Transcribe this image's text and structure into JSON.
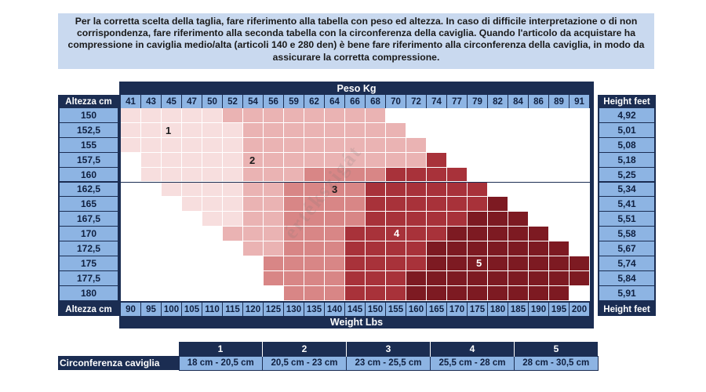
{
  "note": "Per la corretta scelta della taglia, fare riferimento alla tabella con peso ed altezza. In caso di difficile interpretazione o di non corrispondenza, fare riferimento alla seconda tabella con la circonferenza della caviglia. Quando l'articolo da acquistare ha compressione in caviglia medio/alta (articoli 140 e 280 den) è bene fare riferimento alla circonferenza della caviglia, in modo da assicurare la corretta compressione.",
  "chart": {
    "top_title": "Peso Kg",
    "bottom_title": "Weight Lbs",
    "left_header": "Altezza cm",
    "left_footer": "Altezza cm",
    "right_header": "Height feet",
    "right_footer": "Height feet",
    "kg": [
      "41",
      "43",
      "45",
      "47",
      "50",
      "52",
      "54",
      "56",
      "59",
      "62",
      "64",
      "66",
      "68",
      "70",
      "72",
      "74",
      "77",
      "79",
      "82",
      "84",
      "86",
      "89",
      "91"
    ],
    "lbs": [
      "90",
      "95",
      "100",
      "105",
      "110",
      "115",
      "120",
      "125",
      "130",
      "135",
      "140",
      "145",
      "150",
      "155",
      "160",
      "165",
      "170",
      "175",
      "180",
      "185",
      "190",
      "195",
      "200"
    ],
    "heights_cm": [
      "150",
      "152,5",
      "155",
      "157,5",
      "160",
      "162,5",
      "165",
      "167,5",
      "170",
      "172,5",
      "175",
      "177,5",
      "180"
    ],
    "heights_ft": [
      "4,92",
      "5,01",
      "5,08",
      "5,18",
      "5,25",
      "5,34",
      "5,41",
      "5,51",
      "5,58",
      "5,67",
      "5,74",
      "5,84",
      "5,91"
    ],
    "zone_labels": [
      "1",
      "2",
      "3",
      "4",
      "5"
    ],
    "zone_colors": {
      "0": "#ffffff",
      "1": "#f7dede",
      "2": "#eab3b3",
      "3": "#d88686",
      "4": "#a8323a",
      "5": "#7d1a22"
    },
    "watermark": "értékszigát",
    "grid": [
      [
        1,
        1,
        1,
        1,
        1,
        2,
        2,
        2,
        2,
        2,
        2,
        2,
        2,
        0,
        0,
        0,
        0,
        0,
        0,
        0,
        0,
        0,
        0
      ],
      [
        1,
        1,
        1,
        1,
        1,
        1,
        2,
        2,
        2,
        2,
        2,
        2,
        2,
        2,
        0,
        0,
        0,
        0,
        0,
        0,
        0,
        0,
        0
      ],
      [
        1,
        1,
        1,
        1,
        1,
        1,
        2,
        2,
        2,
        2,
        2,
        2,
        2,
        2,
        2,
        0,
        0,
        0,
        0,
        0,
        0,
        0,
        0
      ],
      [
        0,
        1,
        1,
        1,
        1,
        1,
        2,
        2,
        2,
        2,
        2,
        2,
        2,
        2,
        2,
        4,
        0,
        0,
        0,
        0,
        0,
        0,
        0
      ],
      [
        0,
        1,
        1,
        1,
        1,
        1,
        2,
        2,
        2,
        3,
        3,
        3,
        3,
        4,
        4,
        4,
        4,
        0,
        0,
        0,
        0,
        0,
        0
      ],
      [
        0,
        0,
        1,
        1,
        1,
        1,
        2,
        2,
        3,
        3,
        3,
        3,
        4,
        4,
        4,
        4,
        4,
        4,
        0,
        0,
        0,
        0,
        0
      ],
      [
        0,
        0,
        0,
        1,
        1,
        1,
        2,
        2,
        3,
        3,
        3,
        3,
        4,
        4,
        4,
        4,
        4,
        4,
        5,
        0,
        0,
        0,
        0
      ],
      [
        0,
        0,
        0,
        0,
        1,
        1,
        2,
        2,
        3,
        3,
        3,
        3,
        4,
        4,
        4,
        4,
        4,
        5,
        5,
        5,
        0,
        0,
        0
      ],
      [
        0,
        0,
        0,
        0,
        0,
        2,
        2,
        2,
        3,
        3,
        3,
        4,
        4,
        4,
        4,
        4,
        5,
        5,
        5,
        5,
        5,
        0,
        0
      ],
      [
        0,
        0,
        0,
        0,
        0,
        0,
        2,
        2,
        3,
        3,
        3,
        4,
        4,
        4,
        4,
        5,
        5,
        5,
        5,
        5,
        5,
        5,
        0
      ],
      [
        0,
        0,
        0,
        0,
        0,
        0,
        0,
        3,
        3,
        3,
        3,
        4,
        4,
        4,
        4,
        5,
        5,
        5,
        5,
        5,
        5,
        5,
        5
      ],
      [
        0,
        0,
        0,
        0,
        0,
        0,
        0,
        3,
        3,
        3,
        3,
        4,
        4,
        4,
        5,
        5,
        5,
        5,
        5,
        5,
        5,
        5,
        5
      ],
      [
        0,
        0,
        0,
        0,
        0,
        0,
        0,
        0,
        3,
        3,
        3,
        4,
        4,
        4,
        5,
        5,
        5,
        5,
        5,
        5,
        5,
        5,
        0
      ]
    ]
  },
  "legend": {
    "row_label": "Circonferenza caviglia",
    "sizes": [
      "1",
      "2",
      "3",
      "4",
      "5"
    ],
    "ranges": [
      "18 cm - 20,5 cm",
      "20,5 cm - 23 cm",
      "23 cm - 25,5 cm",
      "25,5 cm - 28 cm",
      "28 cm - 30,5 cm"
    ]
  }
}
